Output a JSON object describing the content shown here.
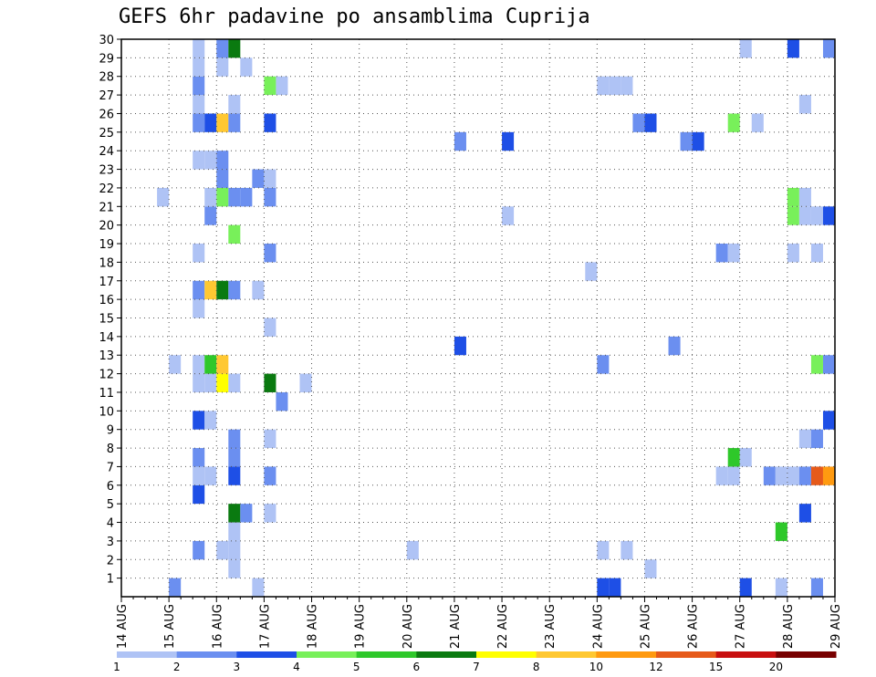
{
  "chart_data": {
    "type": "heatmap",
    "title": "GEFS 6hr padavine po ansamblima Cuprija",
    "xlabel": "",
    "ylabel": "",
    "x_ticks": [
      "14 AUG",
      "15 AUG",
      "16 AUG",
      "17 AUG",
      "18 AUG",
      "19 AUG",
      "20 AUG",
      "21 AUG",
      "22 AUG",
      "23 AUG",
      "24 AUG",
      "25 AUG",
      "26 AUG",
      "27 AUG",
      "28 AUG",
      "29 AUG"
    ],
    "y_ticks": [
      "1",
      "2",
      "3",
      "4",
      "5",
      "6",
      "7",
      "8",
      "9",
      "10",
      "11",
      "12",
      "13",
      "14",
      "15",
      "16",
      "17",
      "18",
      "19",
      "20",
      "21",
      "22",
      "23",
      "24",
      "25",
      "26",
      "27",
      "28",
      "29",
      "30"
    ],
    "x_range": [
      "14 AUG 00",
      "29 AUG 00"
    ],
    "y_range": [
      0,
      30
    ],
    "grid": true,
    "color_scale": {
      "labels": [
        "1",
        "2",
        "3",
        "4",
        "5",
        "6",
        "7",
        "8",
        "10",
        "12",
        "15",
        "20"
      ],
      "colors": [
        "#afc3f5",
        "#6b8ff0",
        "#1e4fe6",
        "#78f05a",
        "#2ec82a",
        "#0a7a10",
        "#ffff00",
        "#ffc832",
        "#ff9a10",
        "#e65a1a",
        "#c80f0f",
        "#780000"
      ]
    },
    "cells": [
      {
        "m": 0,
        "t": "15 AUG 00",
        "v": 2
      },
      {
        "m": 0,
        "t": "16 AUG 18",
        "v": 1
      },
      {
        "m": 0,
        "t": "24 AUG 00",
        "v": 3
      },
      {
        "m": 0,
        "t": "24 AUG 06",
        "v": 3
      },
      {
        "m": 0,
        "t": "27 AUG 18",
        "v": 1
      },
      {
        "m": 0,
        "t": "27 AUG 00",
        "v": 3
      },
      {
        "m": 0,
        "t": "28 AUG 12",
        "v": 2
      },
      {
        "m": 1,
        "t": "16 AUG 06",
        "v": 1
      },
      {
        "m": 1,
        "t": "25 AUG 00",
        "v": 1
      },
      {
        "m": 1,
        "t": "29 AUG 00",
        "v": 1
      },
      {
        "m": 1,
        "t": "29 AUG 06",
        "v": 1
      },
      {
        "m": 2,
        "t": "15 AUG 12",
        "v": 2
      },
      {
        "m": 2,
        "t": "16 AUG 00",
        "v": 1
      },
      {
        "m": 2,
        "t": "16 AUG 06",
        "v": 1
      },
      {
        "m": 2,
        "t": "20 AUG 00",
        "v": 1
      },
      {
        "m": 2,
        "t": "24 AUG 00",
        "v": 1
      },
      {
        "m": 2,
        "t": "24 AUG 12",
        "v": 1
      },
      {
        "m": 3,
        "t": "16 AUG 06",
        "v": 1
      },
      {
        "m": 3,
        "t": "27 AUG 18",
        "v": 5
      },
      {
        "m": 4,
        "t": "16 AUG 06",
        "v": 6
      },
      {
        "m": 4,
        "t": "16 AUG 12",
        "v": 2
      },
      {
        "m": 4,
        "t": "17 AUG 00",
        "v": 1
      },
      {
        "m": 4,
        "t": "28 AUG 06",
        "v": 3
      },
      {
        "m": 5,
        "t": "15 AUG 12",
        "v": 3
      },
      {
        "m": 6,
        "t": "15 AUG 12",
        "v": 1
      },
      {
        "m": 6,
        "t": "15 AUG 18",
        "v": 1
      },
      {
        "m": 6,
        "t": "16 AUG 06",
        "v": 3
      },
      {
        "m": 6,
        "t": "17 AUG 00",
        "v": 2
      },
      {
        "m": 6,
        "t": "26 AUG 12",
        "v": 1
      },
      {
        "m": 6,
        "t": "26 AUG 18",
        "v": 1
      },
      {
        "m": 6,
        "t": "27 AUG 12",
        "v": 2
      },
      {
        "m": 6,
        "t": "27 AUG 18",
        "v": 1
      },
      {
        "m": 6,
        "t": "28 AUG 00",
        "v": 1
      },
      {
        "m": 6,
        "t": "28 AUG 06",
        "v": 2
      },
      {
        "m": 6,
        "t": "28 AUG 12",
        "v": 13
      },
      {
        "m": 6,
        "t": "28 AUG 18",
        "v": 10
      },
      {
        "m": 7,
        "t": "15 AUG 12",
        "v": 2
      },
      {
        "m": 7,
        "t": "16 AUG 06",
        "v": 2
      },
      {
        "m": 7,
        "t": "26 AUG 18",
        "v": 5
      },
      {
        "m": 7,
        "t": "27 AUG 00",
        "v": 1
      },
      {
        "m": 7,
        "t": "29 AUG 00",
        "v": 1
      },
      {
        "m": 8,
        "t": "16 AUG 06",
        "v": 2
      },
      {
        "m": 8,
        "t": "17 AUG 00",
        "v": 1
      },
      {
        "m": 8,
        "t": "28 AUG 06",
        "v": 1
      },
      {
        "m": 8,
        "t": "28 AUG 12",
        "v": 2
      },
      {
        "m": 9,
        "t": "15 AUG 12",
        "v": 3
      },
      {
        "m": 9,
        "t": "15 AUG 18",
        "v": 1
      },
      {
        "m": 9,
        "t": "28 AUG 18",
        "v": 3
      },
      {
        "m": 9,
        "t": "29 AUG 00",
        "v": 3
      },
      {
        "m": 10,
        "t": "17 AUG 06",
        "v": 2
      },
      {
        "m": 11,
        "t": "15 AUG 12",
        "v": 1
      },
      {
        "m": 11,
        "t": "15 AUG 18",
        "v": 1
      },
      {
        "m": 11,
        "t": "16 AUG 00",
        "v": 7
      },
      {
        "m": 11,
        "t": "16 AUG 06",
        "v": 1
      },
      {
        "m": 11,
        "t": "17 AUG 00",
        "v": 6
      },
      {
        "m": 11,
        "t": "17 AUG 18",
        "v": 1
      },
      {
        "m": 12,
        "t": "15 AUG 00",
        "v": 1
      },
      {
        "m": 12,
        "t": "15 AUG 12",
        "v": 1
      },
      {
        "m": 12,
        "t": "15 AUG 18",
        "v": 5
      },
      {
        "m": 12,
        "t": "16 AUG 00",
        "v": 9
      },
      {
        "m": 12,
        "t": "24 AUG 00",
        "v": 2
      },
      {
        "m": 12,
        "t": "28 AUG 12",
        "v": 4
      },
      {
        "m": 12,
        "t": "28 AUG 18",
        "v": 2
      },
      {
        "m": 13,
        "t": "21 AUG 00",
        "v": 3
      },
      {
        "m": 13,
        "t": "25 AUG 12",
        "v": 2
      },
      {
        "m": 14,
        "t": "17 AUG 00",
        "v": 1
      },
      {
        "m": 15,
        "t": "15 AUG 12",
        "v": 1
      },
      {
        "m": 16,
        "t": "15 AUG 12",
        "v": 2
      },
      {
        "m": 16,
        "t": "15 AUG 18",
        "v": 9
      },
      {
        "m": 16,
        "t": "16 AUG 00",
        "v": 6
      },
      {
        "m": 16,
        "t": "16 AUG 06",
        "v": 2
      },
      {
        "m": 16,
        "t": "16 AUG 18",
        "v": 1
      },
      {
        "m": 17,
        "t": "23 AUG 18",
        "v": 1
      },
      {
        "m": 18,
        "t": "15 AUG 12",
        "v": 1
      },
      {
        "m": 18,
        "t": "17 AUG 00",
        "v": 2
      },
      {
        "m": 18,
        "t": "26 AUG 12",
        "v": 2
      },
      {
        "m": 18,
        "t": "26 AUG 18",
        "v": 1
      },
      {
        "m": 18,
        "t": "28 AUG 00",
        "v": 1
      },
      {
        "m": 18,
        "t": "28 AUG 12",
        "v": 1
      },
      {
        "m": 19,
        "t": "16 AUG 06",
        "v": 4
      },
      {
        "m": 20,
        "t": "15 AUG 18",
        "v": 2
      },
      {
        "m": 20,
        "t": "22 AUG 00",
        "v": 1
      },
      {
        "m": 20,
        "t": "28 AUG 00",
        "v": 4
      },
      {
        "m": 20,
        "t": "28 AUG 06",
        "v": 1
      },
      {
        "m": 20,
        "t": "28 AUG 12",
        "v": 1
      },
      {
        "m": 20,
        "t": "28 AUG 18",
        "v": 3
      },
      {
        "m": 21,
        "t": "14 AUG 18",
        "v": 1
      },
      {
        "m": 21,
        "t": "15 AUG 18",
        "v": 1
      },
      {
        "m": 21,
        "t": "16 AUG 00",
        "v": 4
      },
      {
        "m": 21,
        "t": "16 AUG 06",
        "v": 2
      },
      {
        "m": 21,
        "t": "16 AUG 12",
        "v": 2
      },
      {
        "m": 21,
        "t": "17 AUG 00",
        "v": 2
      },
      {
        "m": 21,
        "t": "28 AUG 00",
        "v": 4
      },
      {
        "m": 21,
        "t": "28 AUG 06",
        "v": 1
      },
      {
        "m": 22,
        "t": "16 AUG 00",
        "v": 2
      },
      {
        "m": 22,
        "t": "16 AUG 18",
        "v": 2
      },
      {
        "m": 22,
        "t": "17 AUG 00",
        "v": 1
      },
      {
        "m": 23,
        "t": "15 AUG 12",
        "v": 1
      },
      {
        "m": 23,
        "t": "15 AUG 18",
        "v": 1
      },
      {
        "m": 23,
        "t": "16 AUG 00",
        "v": 2
      },
      {
        "m": 24,
        "t": "21 AUG 00",
        "v": 2
      },
      {
        "m": 24,
        "t": "22 AUG 00",
        "v": 3
      },
      {
        "m": 24,
        "t": "25 AUG 18",
        "v": 2
      },
      {
        "m": 24,
        "t": "26 AUG 00",
        "v": 3
      },
      {
        "m": 24,
        "t": "29 AUG 00",
        "v": 9
      },
      {
        "m": 25,
        "t": "15 AUG 12",
        "v": 2
      },
      {
        "m": 25,
        "t": "15 AUG 18",
        "v": 3
      },
      {
        "m": 25,
        "t": "16 AUG 00",
        "v": 9
      },
      {
        "m": 25,
        "t": "16 AUG 06",
        "v": 2
      },
      {
        "m": 25,
        "t": "17 AUG 00",
        "v": 3
      },
      {
        "m": 25,
        "t": "24 AUG 18",
        "v": 2
      },
      {
        "m": 25,
        "t": "25 AUG 00",
        "v": 3
      },
      {
        "m": 25,
        "t": "26 AUG 18",
        "v": 4
      },
      {
        "m": 25,
        "t": "27 AUG 06",
        "v": 1
      },
      {
        "m": 26,
        "t": "15 AUG 12",
        "v": 1
      },
      {
        "m": 26,
        "t": "16 AUG 06",
        "v": 1
      },
      {
        "m": 26,
        "t": "28 AUG 06",
        "v": 1
      },
      {
        "m": 27,
        "t": "15 AUG 12",
        "v": 2
      },
      {
        "m": 27,
        "t": "17 AUG 00",
        "v": 4
      },
      {
        "m": 27,
        "t": "17 AUG 06",
        "v": 1
      },
      {
        "m": 27,
        "t": "24 AUG 00",
        "v": 1
      },
      {
        "m": 27,
        "t": "24 AUG 06",
        "v": 1
      },
      {
        "m": 27,
        "t": "24 AUG 12",
        "v": 1
      },
      {
        "m": 28,
        "t": "15 AUG 12",
        "v": 1
      },
      {
        "m": 28,
        "t": "16 AUG 00",
        "v": 1
      },
      {
        "m": 28,
        "t": "16 AUG 12",
        "v": 1
      },
      {
        "m": 29,
        "t": "15 AUG 12",
        "v": 1
      },
      {
        "m": 29,
        "t": "16 AUG 00",
        "v": 2
      },
      {
        "m": 29,
        "t": "16 AUG 06",
        "v": 6
      },
      {
        "m": 29,
        "t": "27 AUG 00",
        "v": 1
      },
      {
        "m": 29,
        "t": "28 AUG 00",
        "v": 3
      },
      {
        "m": 29,
        "t": "28 AUG 18",
        "v": 2
      },
      {
        "m": 30,
        "t": "15 AUG 12",
        "v": 2
      },
      {
        "m": 30,
        "t": "16 AUG 00",
        "v": 1
      }
    ]
  }
}
